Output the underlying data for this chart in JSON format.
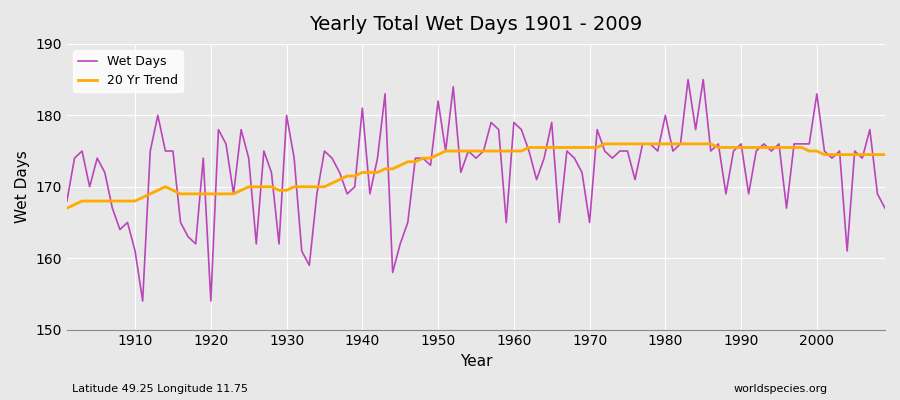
{
  "title": "Yearly Total Wet Days 1901 - 2009",
  "xlabel": "Year",
  "ylabel": "Wet Days",
  "bottom_left_label": "Latitude 49.25 Longitude 11.75",
  "bottom_right_label": "worldspecies.org",
  "ylim": [
    150,
    190
  ],
  "xlim": [
    1901,
    2009
  ],
  "yticks": [
    150,
    160,
    170,
    180,
    190
  ],
  "xticks": [
    1910,
    1920,
    1930,
    1940,
    1950,
    1960,
    1970,
    1980,
    1990,
    2000
  ],
  "wet_days_color": "#bb44bb",
  "trend_color": "#ffaa00",
  "background_color": "#e8e8e8",
  "grid_color": "#ffffff",
  "wet_days": {
    "1901": 168,
    "1902": 174,
    "1903": 175,
    "1904": 170,
    "1905": 174,
    "1906": 172,
    "1907": 167,
    "1908": 164,
    "1909": 165,
    "1910": 161,
    "1911": 154,
    "1912": 175,
    "1913": 180,
    "1914": 175,
    "1915": 175,
    "1916": 165,
    "1917": 163,
    "1918": 162,
    "1919": 174,
    "1920": 154,
    "1921": 178,
    "1922": 176,
    "1923": 169,
    "1924": 178,
    "1925": 174,
    "1926": 162,
    "1927": 175,
    "1928": 172,
    "1929": 162,
    "1930": 180,
    "1931": 174,
    "1932": 161,
    "1933": 159,
    "1934": 169,
    "1935": 175,
    "1936": 174,
    "1937": 172,
    "1938": 169,
    "1939": 170,
    "1940": 181,
    "1941": 169,
    "1942": 174,
    "1943": 183,
    "1944": 158,
    "1945": 162,
    "1946": 165,
    "1947": 174,
    "1948": 174,
    "1949": 173,
    "1950": 182,
    "1951": 175,
    "1952": 184,
    "1953": 172,
    "1954": 175,
    "1955": 174,
    "1956": 175,
    "1957": 179,
    "1958": 178,
    "1959": 165,
    "1960": 179,
    "1961": 178,
    "1962": 175,
    "1963": 171,
    "1964": 174,
    "1965": 179,
    "1966": 165,
    "1967": 175,
    "1968": 174,
    "1969": 172,
    "1970": 165,
    "1971": 178,
    "1972": 175,
    "1973": 174,
    "1974": 175,
    "1975": 175,
    "1976": 171,
    "1977": 176,
    "1978": 176,
    "1979": 175,
    "1980": 180,
    "1981": 175,
    "1982": 176,
    "1983": 185,
    "1984": 178,
    "1985": 185,
    "1986": 175,
    "1987": 176,
    "1988": 169,
    "1989": 175,
    "1990": 176,
    "1991": 169,
    "1992": 175,
    "1993": 176,
    "1994": 175,
    "1995": 176,
    "1996": 167,
    "1997": 176,
    "1998": 176,
    "1999": 176,
    "2000": 183,
    "2001": 175,
    "2002": 174,
    "2003": 175,
    "2004": 161,
    "2005": 175,
    "2006": 174,
    "2007": 178,
    "2008": 169,
    "2009": 167
  },
  "trend": {
    "1901": 167,
    "1902": 167.5,
    "1903": 168,
    "1904": 168,
    "1905": 168,
    "1906": 168,
    "1907": 168,
    "1908": 168,
    "1909": 168,
    "1910": 168,
    "1911": 168.5,
    "1912": 169,
    "1913": 169.5,
    "1914": 170,
    "1915": 169.5,
    "1916": 169,
    "1917": 169,
    "1918": 169,
    "1919": 169,
    "1920": 169,
    "1921": 169,
    "1922": 169,
    "1923": 169,
    "1924": 169.5,
    "1925": 170,
    "1926": 170,
    "1927": 170,
    "1928": 170,
    "1929": 169.5,
    "1930": 169.5,
    "1931": 170,
    "1932": 170,
    "1933": 170,
    "1934": 170,
    "1935": 170,
    "1936": 170.5,
    "1937": 171,
    "1938": 171.5,
    "1939": 171.5,
    "1940": 172,
    "1941": 172,
    "1942": 172,
    "1943": 172.5,
    "1944": 172.5,
    "1945": 173,
    "1946": 173.5,
    "1947": 173.5,
    "1948": 174,
    "1949": 174,
    "1950": 174.5,
    "1951": 175,
    "1952": 175,
    "1953": 175,
    "1954": 175,
    "1955": 175,
    "1956": 175,
    "1957": 175,
    "1958": 175,
    "1959": 175,
    "1960": 175,
    "1961": 175,
    "1962": 175.5,
    "1963": 175.5,
    "1964": 175.5,
    "1965": 175.5,
    "1966": 175.5,
    "1967": 175.5,
    "1968": 175.5,
    "1969": 175.5,
    "1970": 175.5,
    "1971": 175.5,
    "1972": 176,
    "1973": 176,
    "1974": 176,
    "1975": 176,
    "1976": 176,
    "1977": 176,
    "1978": 176,
    "1979": 176,
    "1980": 176,
    "1981": 176,
    "1982": 176,
    "1983": 176,
    "1984": 176,
    "1985": 176,
    "1986": 176,
    "1987": 175.5,
    "1988": 175.5,
    "1989": 175.5,
    "1990": 175.5,
    "1991": 175.5,
    "1992": 175.5,
    "1993": 175.5,
    "1994": 175.5,
    "1995": 175.5,
    "1996": 175.5,
    "1997": 175.5,
    "1998": 175.5,
    "1999": 175,
    "2000": 175,
    "2001": 174.5,
    "2002": 174.5,
    "2003": 174.5,
    "2004": 174.5,
    "2005": 174.5,
    "2006": 174.5,
    "2007": 174.5,
    "2008": 174.5,
    "2009": 174.5
  }
}
